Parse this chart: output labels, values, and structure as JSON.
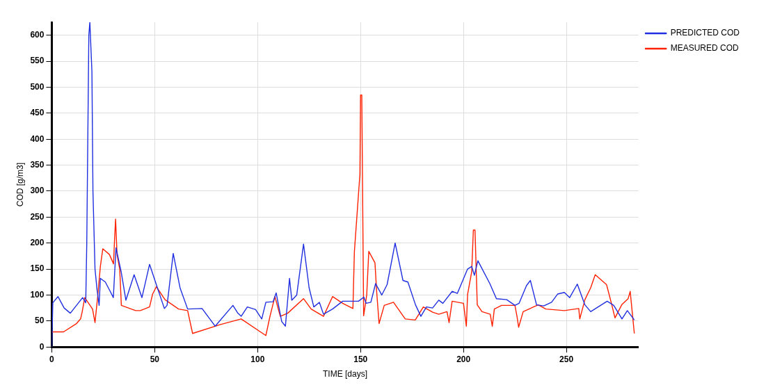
{
  "chart_data": {
    "type": "line",
    "xlabel": "TIME [days]",
    "ylabel": "COD [g/m3]",
    "xlim": [
      0,
      285
    ],
    "xticks": [
      0,
      50,
      100,
      150,
      200,
      250
    ],
    "ylim": [
      0,
      625
    ],
    "yticks": [
      0,
      50,
      100,
      150,
      200,
      250,
      300,
      350,
      400,
      450,
      500,
      550,
      600
    ],
    "grid": true,
    "legend": "top right",
    "marker": "none",
    "line_style": "solid",
    "series": [
      {
        "name": "PREDICTED COD",
        "color": "#1f2fe0",
        "x": [
          0,
          0.5,
          3,
          6,
          9,
          12,
          15,
          16.5,
          17,
          17.5,
          18,
          18.5,
          19.5,
          20,
          21,
          22,
          23,
          23.6,
          26,
          28,
          29.9,
          31.2,
          33.7,
          36,
          40,
          43.8,
          47.5,
          51.3,
          54.7,
          56,
          59,
          62.3,
          66,
          73,
          79.4,
          88,
          90.4,
          92,
          95,
          99,
          102,
          104,
          107.5,
          109,
          111.7,
          113.5,
          115.5,
          116.6,
          119,
          122.3,
          125,
          127.3,
          130,
          132,
          136.4,
          141.3,
          149,
          151.6,
          152.7,
          155,
          157.3,
          160.3,
          162.9,
          166.8,
          170.6,
          173,
          176.7,
          179.3,
          182,
          185,
          188,
          190,
          194.5,
          197,
          202,
          204,
          205.3,
          207,
          212.8,
          216,
          221,
          225,
          227,
          230.6,
          232.5,
          235.5,
          239,
          242.8,
          245.8,
          249,
          251.6,
          255.3,
          259,
          261.8,
          269.8,
          273,
          277,
          279.6,
          283
        ],
        "values": [
          0,
          85,
          97,
          75,
          65,
          80,
          95,
          85,
          200,
          400,
          600,
          625,
          530,
          300,
          150,
          110,
          80,
          132,
          125,
          110,
          95,
          191,
          145,
          90,
          139,
          95,
          159,
          114,
          74,
          80,
          180,
          114,
          73,
          74,
          40,
          80,
          65,
          59,
          77,
          72,
          54,
          86,
          87,
          104,
          49,
          40,
          132,
          90,
          100,
          198,
          114,
          77,
          86,
          63,
          73,
          88,
          88,
          96,
          84,
          86,
          122,
          100,
          120,
          200,
          128,
          125,
          81,
          59,
          77,
          75,
          90,
          84,
          107,
          103,
          150,
          155,
          138,
          166,
          122,
          93,
          91,
          80,
          84,
          118,
          128,
          81,
          79,
          86,
          102,
          105,
          95,
          121,
          81,
          68,
          88,
          80,
          54,
          70,
          52
        ]
      },
      {
        "name": "MEASURED COD",
        "color": "#ff2000",
        "x": [
          0,
          5.7,
          12,
          14,
          14.8,
          16,
          17.9,
          19.8,
          21,
          22.4,
          23.6,
          24.8,
          28,
          30,
          30.5,
          31,
          31.7,
          33,
          33.8,
          40.7,
          43,
          47.5,
          49,
          50.8,
          55,
          61.6,
          66,
          68.4,
          81.7,
          92,
          104,
          106,
          108.4,
          111,
          114.6,
          122.3,
          126,
          132,
          136.4,
          141.3,
          146.3,
          147,
          149.7,
          150,
          150.6,
          151.5,
          153,
          154,
          157,
          157.8,
          159,
          161.5,
          166,
          171.7,
          176.6,
          180.5,
          185,
          188,
          192,
          193,
          194.5,
          200,
          201.4,
          202,
          204,
          204.8,
          205.6,
          206.7,
          209,
          213,
          214,
          215,
          218.5,
          225,
          226,
          226.8,
          229,
          236.3,
          240,
          249,
          256,
          256.5,
          259,
          261.8,
          264,
          269.5,
          272,
          273.6,
          277,
          280,
          281,
          282,
          283
        ],
        "values": [
          29,
          29,
          45,
          54,
          68,
          95,
          84,
          73,
          47,
          101,
          155,
          189,
          178,
          160,
          207,
          246,
          178,
          150,
          80,
          70,
          70,
          77,
          102,
          116,
          91,
          73,
          70,
          26,
          43,
          54,
          22,
          59,
          97,
          59,
          65,
          93,
          73,
          59,
          97,
          84,
          74,
          183,
          333,
          485,
          485,
          60,
          100,
          184,
          162,
          108,
          45,
          80,
          86,
          54,
          52,
          77,
          67,
          63,
          68,
          47,
          88,
          84,
          40,
          101,
          145,
          225,
          225,
          81,
          68,
          63,
          40,
          73,
          80,
          80,
          59,
          38,
          68,
          81,
          73,
          70,
          74,
          54,
          91,
          114,
          139,
          120,
          82,
          56,
          82,
          93,
          107,
          66,
          26
        ]
      }
    ]
  }
}
